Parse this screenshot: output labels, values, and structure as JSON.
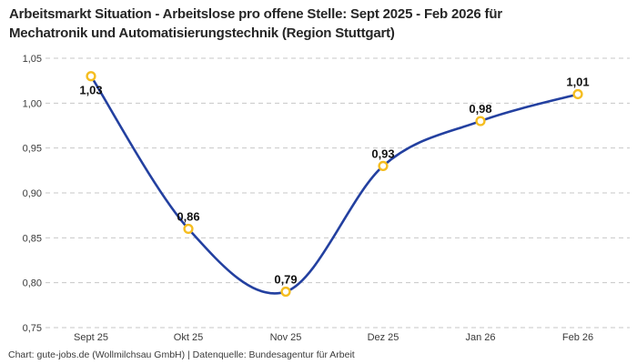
{
  "header": {
    "title_line1": "Arbeitsmarkt Situation - Arbeitslose pro offene Stelle: Sept 2025 - Feb 2026 für",
    "title_line2": "Mechatronik und Automatisierungstechnik (Region Stuttgart)"
  },
  "footer": {
    "credit": "Chart: gute-jobs.de (Wollmilchsau GmbH) | Datenquelle: Bundesagentur für Arbeit"
  },
  "colors": {
    "line": "#2340a0",
    "marker_ring": "#f5bd1f",
    "marker_fill": "#ffffff",
    "grid": "#c7c7c7",
    "tick_text": "#3a3a3a",
    "value_text": "#121212"
  },
  "chart_data": {
    "type": "line",
    "title": "Arbeitsmarkt Situation - Arbeitslose pro offene Stelle: Sept 2025 - Feb 2026 für Mechatronik und Automatisierungstechnik (Region Stuttgart)",
    "categories": [
      "Sept 25",
      "Okt 25",
      "Nov 25",
      "Dez 25",
      "Jan 26",
      "Feb 26"
    ],
    "values": [
      1.03,
      0.86,
      0.79,
      0.93,
      0.98,
      1.01
    ],
    "value_labels": [
      "1,03",
      "0,86",
      "0,79",
      "0,93",
      "0,98",
      "1,01"
    ],
    "xlabel": "",
    "ylabel": "",
    "ylim": [
      0.75,
      1.05
    ],
    "y_ticks": [
      1.05,
      1.0,
      0.95,
      0.9,
      0.85,
      0.8,
      0.75
    ],
    "y_tick_labels": [
      "1,05",
      "1,00",
      "0,95",
      "0,90",
      "0,85",
      "0,80",
      "0,75"
    ],
    "grid": "dashed-horizontal",
    "legend": "none",
    "smooth": true,
    "label_positions": [
      "below",
      "above",
      "above",
      "above",
      "above",
      "above"
    ]
  }
}
